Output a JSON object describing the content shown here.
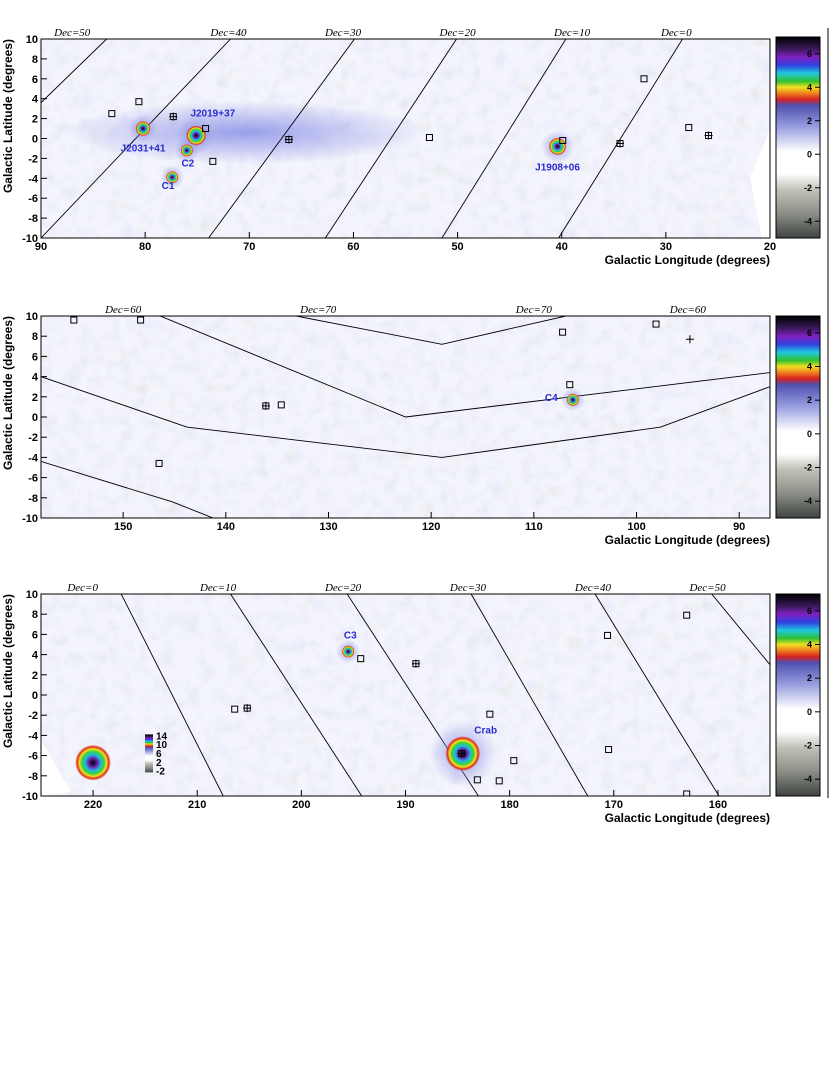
{
  "figure": {
    "colors": {
      "background": "#ffffff",
      "noise_positive": "#c6c9ee",
      "noise_negative": "#bfc4b8",
      "source_label": "#2a2ad0",
      "dec_lines": "#000000"
    }
  },
  "chart_data": [
    {
      "type": "heatmap",
      "title": "",
      "xlabel": "Galactic Longitude (degrees)",
      "ylabel": "Galactic Latitude (degrees)",
      "xlim": [
        90,
        20
      ],
      "ylim": [
        -10,
        10
      ],
      "xticks": [
        90,
        80,
        70,
        60,
        50,
        40,
        30,
        20
      ],
      "yticks": [
        10,
        8,
        6,
        4,
        2,
        0,
        -2,
        -4,
        -6,
        -8,
        -10
      ],
      "colorbar": {
        "range": [
          -5,
          7
        ],
        "ticks": [
          6,
          4,
          2,
          0,
          -2,
          -4
        ]
      },
      "dec_lines": [
        {
          "label": "Dec=50",
          "label_l": 87
        },
        {
          "label": "Dec=40",
          "label_l": 72
        },
        {
          "label": "Dec=30",
          "label_l": 61
        },
        {
          "label": "Dec=20",
          "label_l": 50
        },
        {
          "label": "Dec=10",
          "label_l": 39
        },
        {
          "label": "Dec=0",
          "label_l": 29
        }
      ],
      "sources": [
        {
          "label": "J2031+41",
          "l": 80.2,
          "b": 1.0,
          "sigma": 6,
          "label_l": 80.2,
          "label_b": -1.3
        },
        {
          "label": "J2019+37",
          "l": 75.1,
          "b": 0.3,
          "sigma": 8,
          "label_l": 73.5,
          "label_b": 2.2
        },
        {
          "label": "C2",
          "l": 76.0,
          "b": -1.2,
          "sigma": 5,
          "label_l": 75.9,
          "label_b": -2.8
        },
        {
          "label": "C1",
          "l": 77.4,
          "b": -3.9,
          "sigma": 5,
          "label_l": 77.8,
          "label_b": -5.1
        },
        {
          "label": "J1908+06",
          "l": 40.4,
          "b": -0.8,
          "sigma": 7,
          "label_l": 40.4,
          "label_b": -3.2
        }
      ],
      "markers": [
        {
          "l": 83.2,
          "b": 2.5,
          "shape": "square"
        },
        {
          "l": 80.6,
          "b": 3.7,
          "shape": "square"
        },
        {
          "l": 77.3,
          "b": 2.2,
          "shape": "square-plus"
        },
        {
          "l": 74.2,
          "b": 1.0,
          "shape": "square"
        },
        {
          "l": 73.5,
          "b": -2.3,
          "shape": "square"
        },
        {
          "l": 66.2,
          "b": -0.1,
          "shape": "square-plus"
        },
        {
          "l": 52.7,
          "b": 0.1,
          "shape": "square"
        },
        {
          "l": 39.9,
          "b": -0.2,
          "shape": "square"
        },
        {
          "l": 34.4,
          "b": -0.5,
          "shape": "square-plus"
        },
        {
          "l": 32.1,
          "b": 6.0,
          "shape": "square"
        },
        {
          "l": 27.8,
          "b": 1.1,
          "shape": "square"
        },
        {
          "l": 25.9,
          "b": 0.3,
          "shape": "square-plus"
        }
      ]
    },
    {
      "type": "heatmap",
      "title": "",
      "xlabel": "Galactic Longitude (degrees)",
      "ylabel": "Galactic Latitude (degrees)",
      "xlim": [
        158,
        87
      ],
      "ylim": [
        -10,
        10
      ],
      "xticks": [
        150,
        140,
        130,
        120,
        110,
        100,
        90
      ],
      "yticks": [
        10,
        8,
        6,
        4,
        2,
        0,
        -2,
        -4,
        -6,
        -8,
        -10
      ],
      "colorbar": {
        "range": [
          -5,
          7
        ],
        "ticks": [
          6,
          4,
          2,
          0,
          -2,
          -4
        ]
      },
      "dec_lines": [
        {
          "label": "Dec=60",
          "label_l": 150
        },
        {
          "label": "Dec=70",
          "label_l": 131
        },
        {
          "label": "Dec=70",
          "label_l": 110
        },
        {
          "label": "Dec=60",
          "label_l": 95
        }
      ],
      "sources": [
        {
          "label": "C4",
          "l": 106.2,
          "b": 1.7,
          "sigma": 5,
          "label_l": 108.3,
          "label_b": 1.6
        }
      ],
      "markers": [
        {
          "l": 154.8,
          "b": 9.6,
          "shape": "square"
        },
        {
          "l": 148.3,
          "b": 9.6,
          "shape": "square"
        },
        {
          "l": 136.1,
          "b": 1.1,
          "shape": "square-plus"
        },
        {
          "l": 134.6,
          "b": 1.2,
          "shape": "square"
        },
        {
          "l": 146.5,
          "b": -4.6,
          "shape": "square"
        },
        {
          "l": 107.2,
          "b": 8.4,
          "shape": "square"
        },
        {
          "l": 106.5,
          "b": 3.2,
          "shape": "square"
        },
        {
          "l": 98.1,
          "b": 9.2,
          "shape": "square"
        },
        {
          "l": 94.8,
          "b": 7.7,
          "shape": "plus"
        }
      ]
    },
    {
      "type": "heatmap",
      "title": "",
      "xlabel": "Galactic Longitude (degrees)",
      "ylabel": "Galactic Latitude (degrees)",
      "xlim": [
        225,
        155
      ],
      "ylim": [
        -10,
        10
      ],
      "xticks": [
        220,
        210,
        200,
        190,
        180,
        170,
        160
      ],
      "yticks": [
        10,
        8,
        6,
        4,
        2,
        0,
        -2,
        -4,
        -6,
        -8,
        -10
      ],
      "colorbar": {
        "range": [
          -5,
          7
        ],
        "ticks": [
          6,
          4,
          2,
          0,
          -2,
          -4
        ]
      },
      "dec_lines": [
        {
          "label": "Dec=0",
          "label_l": 221
        },
        {
          "label": "Dec=10",
          "label_l": 208
        },
        {
          "label": "Dec=20",
          "label_l": 196
        },
        {
          "label": "Dec=30",
          "label_l": 184
        },
        {
          "label": "Dec=40",
          "label_l": 172
        },
        {
          "label": "Dec=50",
          "label_l": 161
        }
      ],
      "sources": [
        {
          "label": "C3",
          "l": 195.5,
          "b": 4.3,
          "sigma": 5,
          "label_l": 195.3,
          "label_b": 5.6
        },
        {
          "label": "Crab",
          "l": 184.5,
          "b": -5.8,
          "sigma": 14,
          "label_l": 182.3,
          "label_b": -3.8
        }
      ],
      "markers": [
        {
          "l": 206.4,
          "b": -1.4,
          "shape": "square"
        },
        {
          "l": 205.2,
          "b": -1.3,
          "shape": "square-plus"
        },
        {
          "l": 194.3,
          "b": 3.6,
          "shape": "square"
        },
        {
          "l": 189.0,
          "b": 3.1,
          "shape": "square-plus"
        },
        {
          "l": 181.9,
          "b": -1.9,
          "shape": "square"
        },
        {
          "l": 184.6,
          "b": -5.8,
          "shape": "square-plus"
        },
        {
          "l": 183.1,
          "b": -8.4,
          "shape": "square"
        },
        {
          "l": 181.0,
          "b": -8.5,
          "shape": "square"
        },
        {
          "l": 179.6,
          "b": -6.5,
          "shape": "square"
        },
        {
          "l": 170.6,
          "b": 5.9,
          "shape": "square"
        },
        {
          "l": 170.5,
          "b": -5.4,
          "shape": "square"
        },
        {
          "l": 163.0,
          "b": 7.9,
          "shape": "square"
        },
        {
          "l": 163.0,
          "b": -9.8,
          "shape": "square"
        }
      ],
      "inset": {
        "description_ticks": [
          14,
          10,
          6,
          2,
          -2
        ]
      }
    }
  ]
}
